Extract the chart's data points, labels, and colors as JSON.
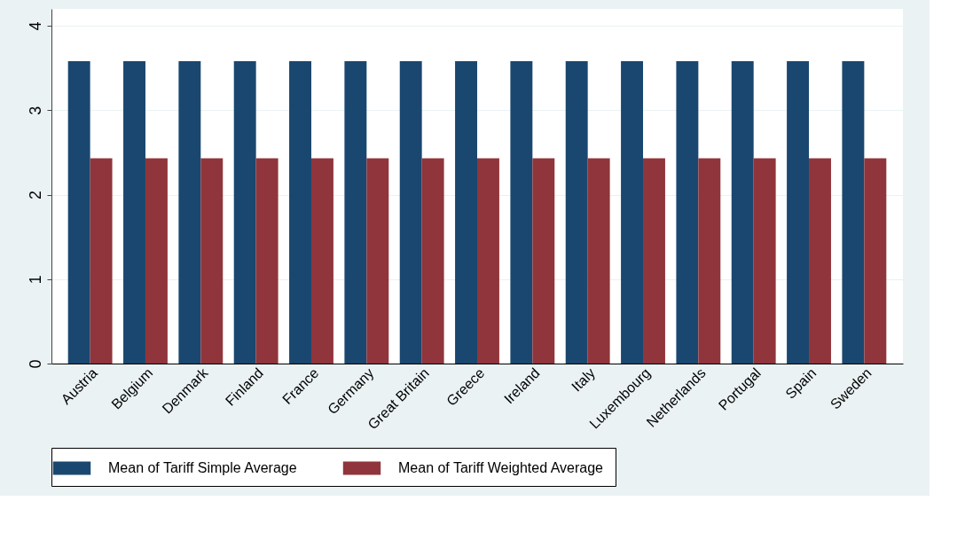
{
  "chart_data": {
    "type": "bar",
    "categories": [
      "Austria",
      "Belgium",
      "Denmark",
      "Finland",
      "France",
      "Germany",
      "Great Britain",
      "Greece",
      "Ireland",
      "Italy",
      "Luxembourg",
      "Netherlands",
      "Portugal",
      "Spain",
      "Sweden"
    ],
    "series": [
      {
        "name": "Mean of Tariff Simple Average",
        "color": "#1a476f",
        "values": [
          3.58,
          3.58,
          3.58,
          3.58,
          3.58,
          3.58,
          3.58,
          3.58,
          3.58,
          3.58,
          3.58,
          3.58,
          3.58,
          3.58,
          3.58
        ]
      },
      {
        "name": "Mean of Tariff Weighted Average",
        "color": "#90353b",
        "values": [
          2.43,
          2.43,
          2.43,
          2.43,
          2.43,
          2.43,
          2.43,
          2.43,
          2.43,
          2.43,
          2.43,
          2.43,
          2.43,
          2.43,
          2.43
        ]
      }
    ],
    "ylim": [
      0,
      4.2
    ],
    "yticks": [
      0,
      1,
      2,
      3,
      4
    ],
    "grid": "y",
    "legend": "bottom"
  }
}
